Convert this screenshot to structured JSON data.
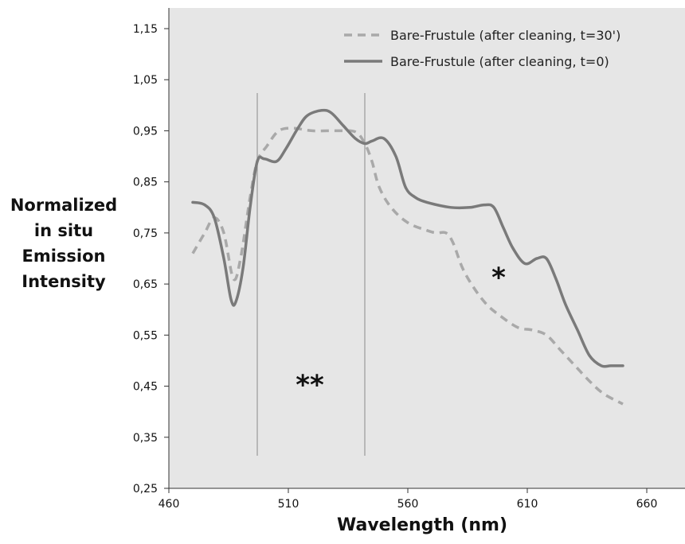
{
  "chart_data": {
    "type": "line",
    "xlabel": "Wavelength (nm)",
    "ylabel_lines": [
      "Normalized",
      "in situ",
      "Emission",
      "Intensity"
    ],
    "xlim": [
      460,
      660
    ],
    "ylim": [
      0.25,
      1.15
    ],
    "x_ticks": [
      460,
      510,
      560,
      610,
      660
    ],
    "x_tick_labels": [
      "460",
      "510",
      "560",
      "610",
      "660"
    ],
    "y_ticks": [
      0.25,
      0.35,
      0.45,
      0.55,
      0.65,
      0.75,
      0.85,
      0.95,
      1.05,
      1.15
    ],
    "y_tick_labels": [
      "0,25",
      "0,35",
      "0,45",
      "0,55",
      "0,65",
      "0,75",
      "0,85",
      "0,95",
      "1,05",
      "1,15"
    ],
    "grid": false,
    "legend_position": "top-right",
    "vertical_lines": [
      497,
      542
    ],
    "annotations": [
      {
        "text": "**",
        "x": 519,
        "y": 0.45
      },
      {
        "text": "*",
        "x": 598,
        "y": 0.66
      }
    ],
    "series": [
      {
        "name": "Bare-Frustule (after cleaning, t=30')",
        "style": "dashed",
        "color": "#a9a9a9",
        "x": [
          470,
          475,
          479,
          483,
          487,
          490,
          494,
          497,
          501,
          506,
          512,
          520,
          530,
          538,
          542,
          545,
          548,
          553,
          560,
          568,
          572,
          576,
          579,
          583,
          588,
          593,
          598,
          606,
          612,
          618,
          624,
          630,
          636,
          642,
          650
        ],
        "y": [
          0.71,
          0.75,
          0.78,
          0.75,
          0.66,
          0.7,
          0.82,
          0.89,
          0.92,
          0.95,
          0.955,
          0.95,
          0.95,
          0.948,
          0.925,
          0.89,
          0.84,
          0.8,
          0.77,
          0.755,
          0.75,
          0.75,
          0.73,
          0.68,
          0.64,
          0.61,
          0.59,
          0.565,
          0.56,
          0.55,
          0.52,
          0.49,
          0.46,
          0.435,
          0.415
        ]
      },
      {
        "name": "Bare-Frustule (after cleaning, t=0)",
        "style": "solid",
        "color": "#7a7a7a",
        "x": [
          470,
          475,
          479,
          483,
          486,
          488,
          491,
          494,
          497,
          500,
          505,
          509,
          514,
          518,
          524,
          528,
          533,
          538,
          542,
          545,
          550,
          555,
          559,
          563,
          568,
          578,
          586,
          592,
          596,
          600,
          604,
          609,
          614,
          618,
          622,
          626,
          631,
          636,
          641,
          645,
          650
        ],
        "y": [
          0.81,
          0.805,
          0.78,
          0.7,
          0.62,
          0.615,
          0.68,
          0.8,
          0.89,
          0.895,
          0.89,
          0.915,
          0.955,
          0.98,
          0.99,
          0.985,
          0.96,
          0.935,
          0.925,
          0.93,
          0.935,
          0.9,
          0.84,
          0.82,
          0.81,
          0.8,
          0.8,
          0.805,
          0.8,
          0.76,
          0.72,
          0.69,
          0.7,
          0.7,
          0.66,
          0.61,
          0.56,
          0.51,
          0.49,
          0.49,
          0.49
        ]
      }
    ]
  }
}
